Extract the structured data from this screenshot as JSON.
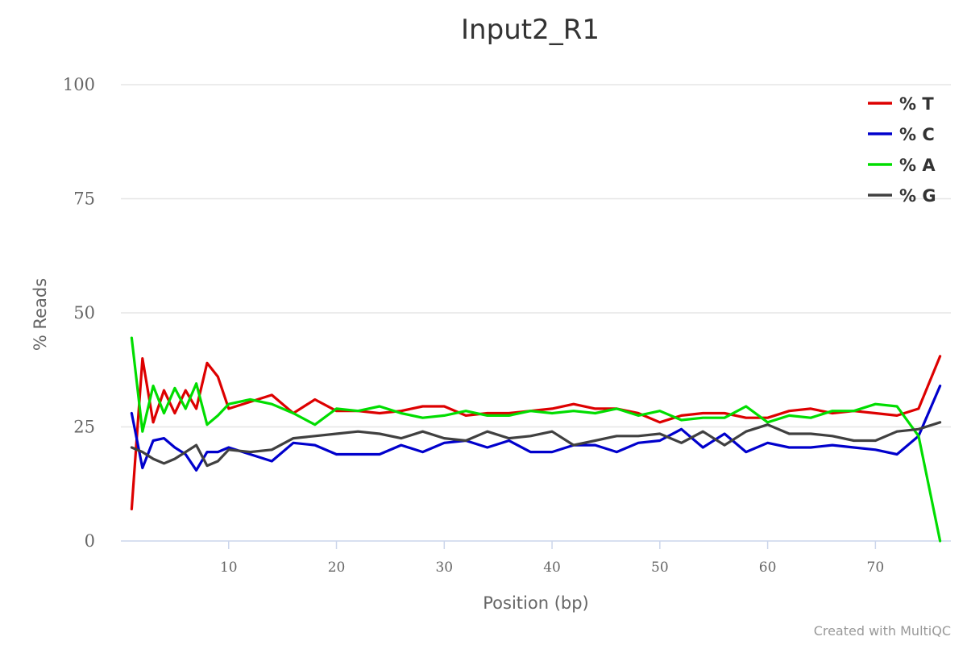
{
  "chart_data": {
    "type": "line",
    "title": "Input2_R1",
    "xlabel": "Position (bp)",
    "ylabel": "% Reads",
    "xlim": [
      0,
      77
    ],
    "ylim": [
      0,
      100
    ],
    "xticks": [
      10,
      20,
      30,
      40,
      50,
      60,
      70
    ],
    "yticks": [
      0,
      25,
      50,
      75,
      100
    ],
    "grid": true,
    "legend_position": "top-right",
    "credit": "Created with MultiQC",
    "x": [
      1,
      2,
      3,
      4,
      5,
      6,
      7,
      8,
      9,
      10,
      12,
      14,
      16,
      18,
      20,
      22,
      24,
      26,
      28,
      30,
      32,
      34,
      36,
      38,
      40,
      42,
      44,
      46,
      48,
      50,
      52,
      54,
      56,
      58,
      60,
      62,
      64,
      66,
      68,
      70,
      72,
      74,
      76
    ],
    "series": [
      {
        "name": "% T",
        "color": "#dd0000",
        "values": [
          7,
          40,
          26,
          33,
          28,
          33,
          29,
          39,
          36,
          29,
          30.5,
          32,
          28,
          31,
          28.5,
          28.5,
          28,
          28.5,
          29.5,
          29.5,
          27.5,
          28,
          28,
          28.5,
          29,
          30,
          29,
          29,
          28,
          26,
          27.5,
          28,
          28,
          27,
          27,
          28.5,
          29,
          28,
          28.5,
          28,
          27.5,
          29,
          40.5
        ]
      },
      {
        "name": "% C",
        "color": "#0000cc",
        "values": [
          28,
          16,
          22,
          22.5,
          20.5,
          19,
          15.5,
          19.5,
          19.5,
          20.5,
          19,
          17.5,
          21.5,
          21,
          19,
          19,
          19,
          21,
          19.5,
          21.5,
          22,
          20.5,
          22,
          19.5,
          19.5,
          21,
          21,
          19.5,
          21.5,
          22,
          24.5,
          20.5,
          23.5,
          19.5,
          21.5,
          20.5,
          20.5,
          21,
          20.5,
          20,
          19,
          23,
          34
        ]
      },
      {
        "name": "% A",
        "color": "#00dd00",
        "values": [
          44.5,
          24,
          34,
          28,
          33.5,
          29,
          34.5,
          25.5,
          27.5,
          30,
          31,
          30,
          28,
          25.5,
          29,
          28.5,
          29.5,
          28,
          27,
          27.5,
          28.5,
          27.5,
          27.5,
          28.5,
          28,
          28.5,
          28,
          29,
          27.5,
          28.5,
          26.5,
          27,
          27,
          29.5,
          26,
          27.5,
          27,
          28.5,
          28.5,
          30,
          29.5,
          23,
          0
        ]
      },
      {
        "name": "% G",
        "color": "#404040",
        "values": [
          20.5,
          19.5,
          18,
          17,
          18,
          19.5,
          21,
          16.5,
          17.5,
          20,
          19.5,
          20,
          22.5,
          23,
          23.5,
          24,
          23.5,
          22.5,
          24,
          22.5,
          22,
          24,
          22.5,
          23,
          24,
          21,
          22,
          23,
          23,
          23.5,
          21.5,
          24,
          21,
          24,
          25.5,
          23.5,
          23.5,
          23,
          22,
          22,
          24,
          24.5,
          26
        ]
      }
    ]
  }
}
